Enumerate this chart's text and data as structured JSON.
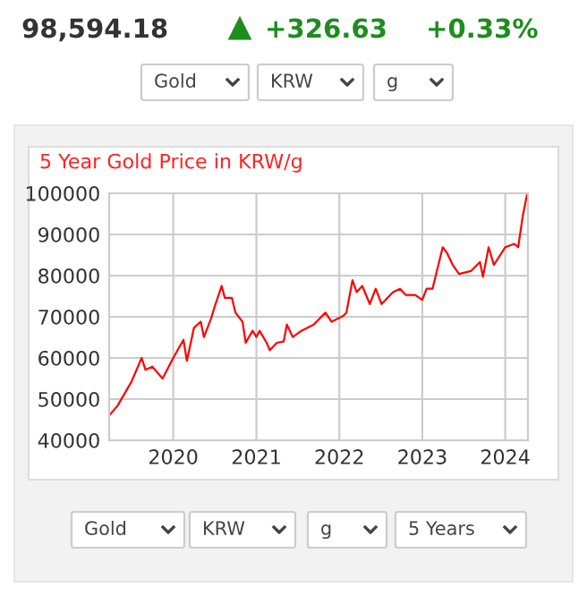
{
  "chart_data": {
    "type": "line",
    "title": "5 Year Gold Price in KRW/g",
    "annotations": [
      "98,594.18",
      "+326.63",
      "+0.33%",
      "Gold",
      "KRW",
      "g",
      "Gold",
      "KRW",
      "g",
      "5 Years"
    ],
    "series": [
      {
        "color": "#ff0000",
        "x": [
          "2019-03-28",
          "2019-05-01",
          "2019-07-01",
          "2019-08-15",
          "2019-09-01",
          "2019-10-01",
          "2019-11-15",
          "2020-01-01",
          "2020-02-15",
          "2020-03-01",
          "2020-04-01",
          "2020-05-01",
          "2020-05-15",
          "2020-06-15",
          "2020-07-01",
          "2020-08-01",
          "2020-08-15",
          "2020-09-15",
          "2020-10-01",
          "2020-11-01",
          "2020-11-15",
          "2020-12-15",
          "2021-01-01",
          "2021-01-15",
          "2021-02-15",
          "2021-03-01",
          "2021-04-01",
          "2021-05-01",
          "2021-05-15",
          "2021-06-10",
          "2021-07-18",
          "2021-09-10",
          "2021-11-01",
          "2021-11-28",
          "2022-01-18",
          "2022-02-01",
          "2022-02-28",
          "2022-03-18",
          "2022-04-12",
          "2022-05-15",
          "2022-06-10",
          "2022-07-06",
          "2022-08-25",
          "2022-09-25",
          "2022-10-20",
          "2022-12-01",
          "2023-01-01",
          "2023-01-20",
          "2023-02-15",
          "2023-04-01",
          "2023-04-20",
          "2023-05-15",
          "2023-06-12",
          "2023-08-03",
          "2023-09-12",
          "2023-09-25",
          "2023-10-20",
          "2023-11-12",
          "2024-01-01",
          "2024-02-10",
          "2024-02-27",
          "2024-03-18",
          "2024-04-06"
        ],
        "values": [
          46200,
          48400,
          54200,
          60000,
          57100,
          57900,
          55000,
          60000,
          64400,
          59300,
          67300,
          68800,
          65100,
          69500,
          72400,
          77500,
          74600,
          74600,
          71000,
          68800,
          63700,
          66600,
          65100,
          66600,
          63700,
          61900,
          63700,
          64000,
          68100,
          65100,
          66600,
          68100,
          71000,
          68800,
          70200,
          71000,
          78900,
          76000,
          77500,
          73100,
          76800,
          73100,
          76000,
          76800,
          75300,
          75300,
          74100,
          76800,
          76800,
          86900,
          85500,
          82600,
          80400,
          81100,
          83300,
          79700,
          86900,
          82600,
          86900,
          87700,
          86900,
          94400,
          99700
        ]
      }
    ],
    "xlim": [
      "2019-03-25",
      "2024-04-10"
    ],
    "xticks": [
      {
        "value": "2020-01-01",
        "label": "2020"
      },
      {
        "value": "2021-01-01",
        "label": "2021"
      },
      {
        "value": "2022-01-01",
        "label": "2022"
      },
      {
        "value": "2023-01-01",
        "label": "2023"
      },
      {
        "value": "2024-01-01",
        "label": "2024"
      }
    ],
    "ylim": [
      40000,
      100000
    ],
    "yticks": [
      40000,
      50000,
      60000,
      70000,
      80000,
      90000,
      100000
    ],
    "grid": true,
    "line_style": "solid",
    "marker": "none"
  }
}
